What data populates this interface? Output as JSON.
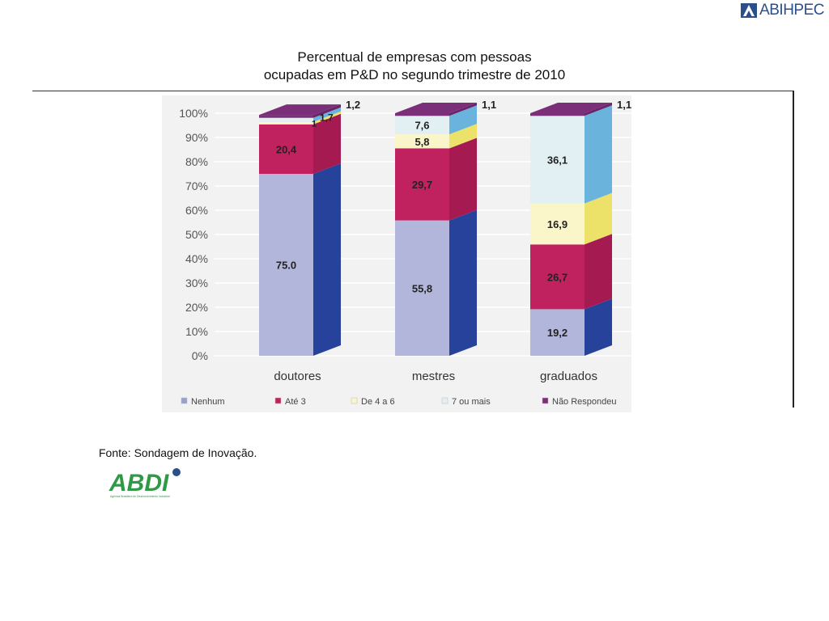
{
  "header": {
    "brand": "ABIHPEC"
  },
  "title": {
    "line1": "Percentual de empresas com pessoas",
    "line2": "ocupadas em P&D no segundo trimestre de 2010"
  },
  "source": "Fonte: Sondagem de Inovação.",
  "footer_logo": {
    "text": "ABDI",
    "tagline": "Agência Brasileira de Desenvolvimento Industrial"
  },
  "chart_data": {
    "type": "bar",
    "stacked": true,
    "categories": [
      "doutores",
      "mestres",
      "graduados"
    ],
    "series": [
      {
        "name": "Nenhum",
        "values": [
          75.0,
          55.8,
          19.2
        ],
        "labels": [
          "75.0",
          "55,8",
          "19,2"
        ],
        "front": "#b2b6da",
        "side": "#27429a"
      },
      {
        "name": "Até 3",
        "values": [
          20.4,
          29.7,
          26.7
        ],
        "labels": [
          "20,4",
          "29,7",
          "26,7"
        ],
        "front": "#c0225f",
        "side": "#a61a52"
      },
      {
        "name": "De 4 a 6",
        "values": [
          1.0,
          5.8,
          16.9
        ],
        "labels": [
          "1",
          "5,8",
          "16,9"
        ],
        "front": "#fbf6c9",
        "side": "#ece26a"
      },
      {
        "name": "7 ou mais",
        "values": [
          1.7,
          7.6,
          36.1
        ],
        "labels": [
          "1,7",
          "7,6",
          "36,1"
        ],
        "front": "#e2f0f4",
        "side": "#6ab3dc"
      },
      {
        "name": "Não Respondeu",
        "values": [
          1.2,
          1.1,
          1.1
        ],
        "labels": [
          "1,2",
          "1,1",
          "1,1"
        ],
        "front": "#7a2f78",
        "side": "#6a2568"
      }
    ],
    "yticks": [
      "0%",
      "10%",
      "20%",
      "30%",
      "40%",
      "50%",
      "60%",
      "70%",
      "80%",
      "90%",
      "100%"
    ],
    "ylim": [
      0,
      100
    ],
    "grid": true,
    "legend_position": "bottom",
    "colors": {
      "background": "#f2f2f2",
      "grid": "#ffffff",
      "tick_text": "#555555",
      "label_text": "#222222"
    }
  }
}
